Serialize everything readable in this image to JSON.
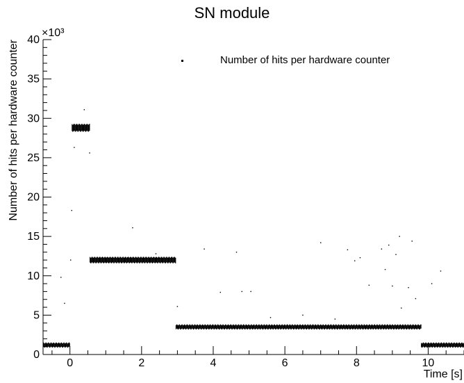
{
  "chart_data": {
    "type": "scatter",
    "title": "SN module",
    "xlabel": "Time [s]",
    "ylabel": "Number of hits per hardware counter",
    "y_multiplier_label": "×10³",
    "xlim": [
      -0.75,
      11.0
    ],
    "ylim": [
      0,
      40
    ],
    "x_ticks": [
      0,
      2,
      4,
      6,
      8,
      10
    ],
    "x_tick_labels": [
      "0",
      "2",
      "4",
      "6",
      "8",
      "10"
    ],
    "y_ticks": [
      0,
      5,
      10,
      15,
      20,
      25,
      30,
      35,
      40
    ],
    "y_tick_labels": [
      "0",
      "5",
      "10",
      "15",
      "20",
      "25",
      "30",
      "35",
      "40"
    ],
    "legend": {
      "entries": [
        "Number of hits per hardware counter"
      ],
      "position": "top-right"
    },
    "grid": false,
    "series": [
      {
        "name": "Number of hits per hardware counter",
        "bands": [
          {
            "x_start": -0.75,
            "x_end": 0.0,
            "y": 1.2
          },
          {
            "x_start": 0.05,
            "x_end": 0.55,
            "y": 28.8
          },
          {
            "x_start": 0.55,
            "x_end": 2.95,
            "y": 12.0
          },
          {
            "x_start": 2.95,
            "x_end": 9.8,
            "y": 3.5
          },
          {
            "x_start": 9.8,
            "x_end": 11.0,
            "y": 1.2
          }
        ],
        "outliers": [
          [
            -0.25,
            9.8
          ],
          [
            -0.15,
            6.5
          ],
          [
            0.02,
            12.0
          ],
          [
            0.05,
            18.3
          ],
          [
            0.12,
            26.3
          ],
          [
            0.4,
            31.1
          ],
          [
            0.55,
            25.6
          ],
          [
            1.75,
            16.1
          ],
          [
            2.4,
            12.8
          ],
          [
            3.0,
            6.1
          ],
          [
            3.75,
            13.4
          ],
          [
            4.2,
            7.9
          ],
          [
            4.65,
            13.0
          ],
          [
            4.8,
            8.0
          ],
          [
            5.05,
            8.0
          ],
          [
            5.6,
            4.7
          ],
          [
            6.5,
            5.0
          ],
          [
            7.0,
            14.2
          ],
          [
            7.4,
            4.5
          ],
          [
            7.75,
            13.3
          ],
          [
            7.95,
            11.9
          ],
          [
            8.1,
            12.3
          ],
          [
            8.35,
            8.8
          ],
          [
            8.7,
            13.4
          ],
          [
            8.8,
            10.8
          ],
          [
            8.9,
            13.9
          ],
          [
            9.0,
            8.7
          ],
          [
            9.1,
            12.7
          ],
          [
            9.2,
            15.0
          ],
          [
            9.25,
            5.9
          ],
          [
            9.45,
            8.5
          ],
          [
            9.55,
            14.4
          ],
          [
            9.65,
            7.1
          ],
          [
            10.1,
            9.0
          ],
          [
            10.35,
            10.6
          ]
        ]
      }
    ]
  }
}
